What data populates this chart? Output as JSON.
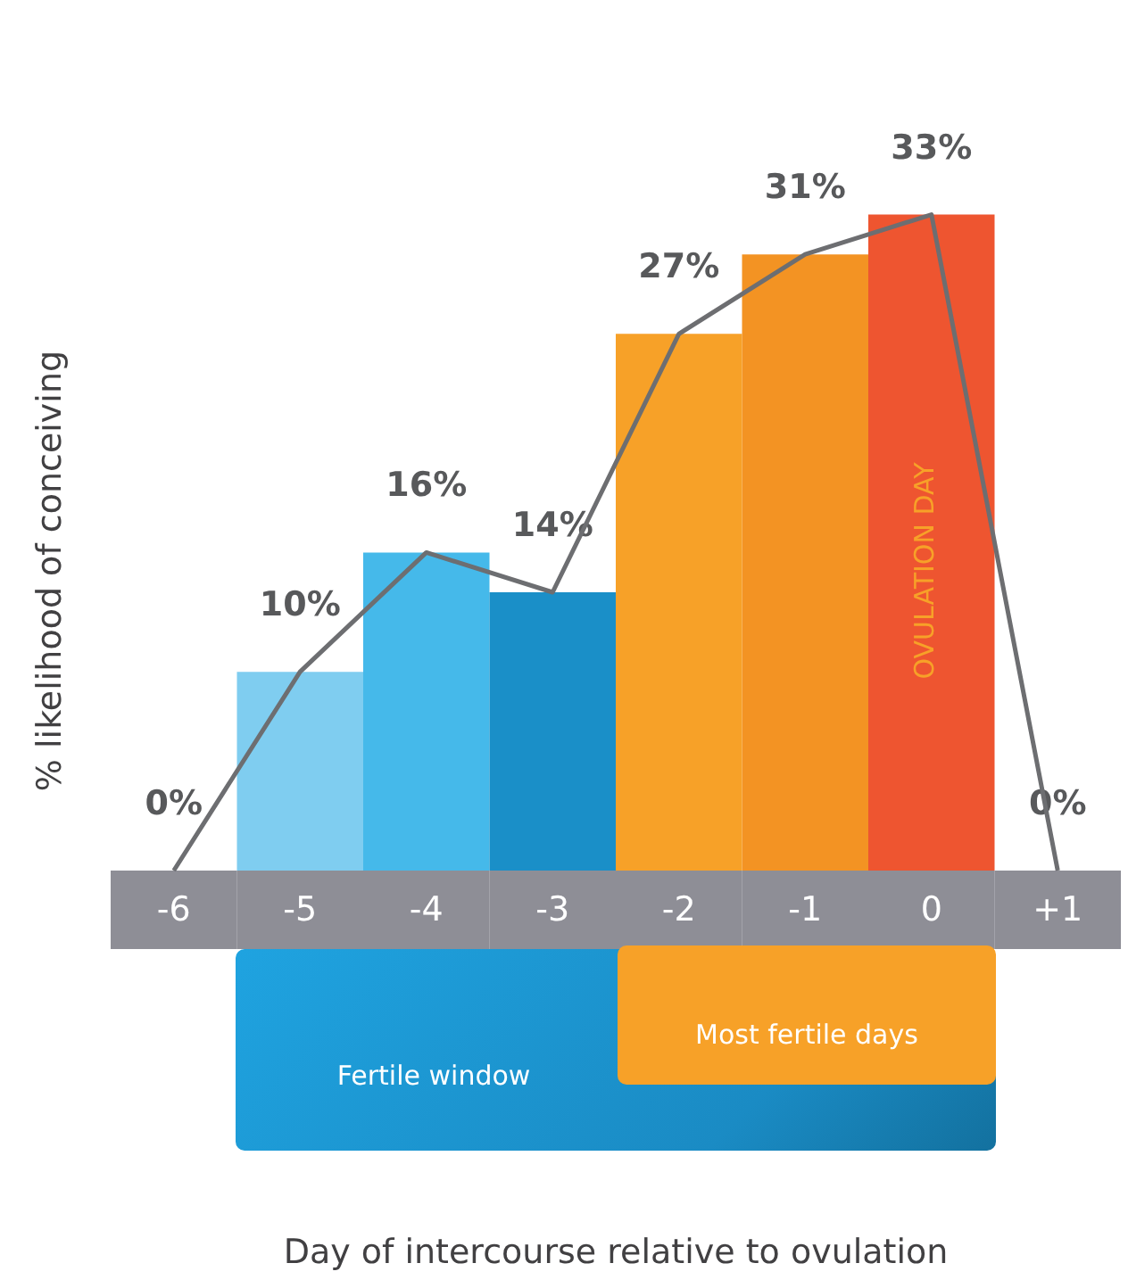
{
  "chart_data": {
    "type": "bar",
    "ylabel": "% likelihood of conceiving",
    "categories": [
      "-6",
      "-5",
      "-4",
      "-3",
      "-2",
      "-1",
      "0",
      "+1"
    ],
    "series": [
      {
        "type": "bar",
        "colors": [
          "#7fcdf0",
          "#7fcdf0",
          "#45b9ea",
          "#1a8fc8",
          "#f7a128",
          "#f39323",
          "#ee5530",
          "#7fcdf0"
        ],
        "values": [
          0,
          10,
          16,
          14,
          27,
          31,
          33,
          0
        ],
        "value_labels": [
          "0%",
          "10%",
          "16%",
          "14%",
          "27%",
          "31%",
          "33%",
          "0%"
        ]
      },
      {
        "type": "line",
        "color": "#6d6e71",
        "values": [
          0,
          10,
          16,
          14,
          27,
          31,
          33,
          0
        ]
      }
    ],
    "tick_labels": "x",
    "marker": "none",
    "annotations": [
      "OVULATION DAY",
      "Fertile window",
      "Most fertile days",
      "Day of intercourse relative to ovulation"
    ]
  }
}
